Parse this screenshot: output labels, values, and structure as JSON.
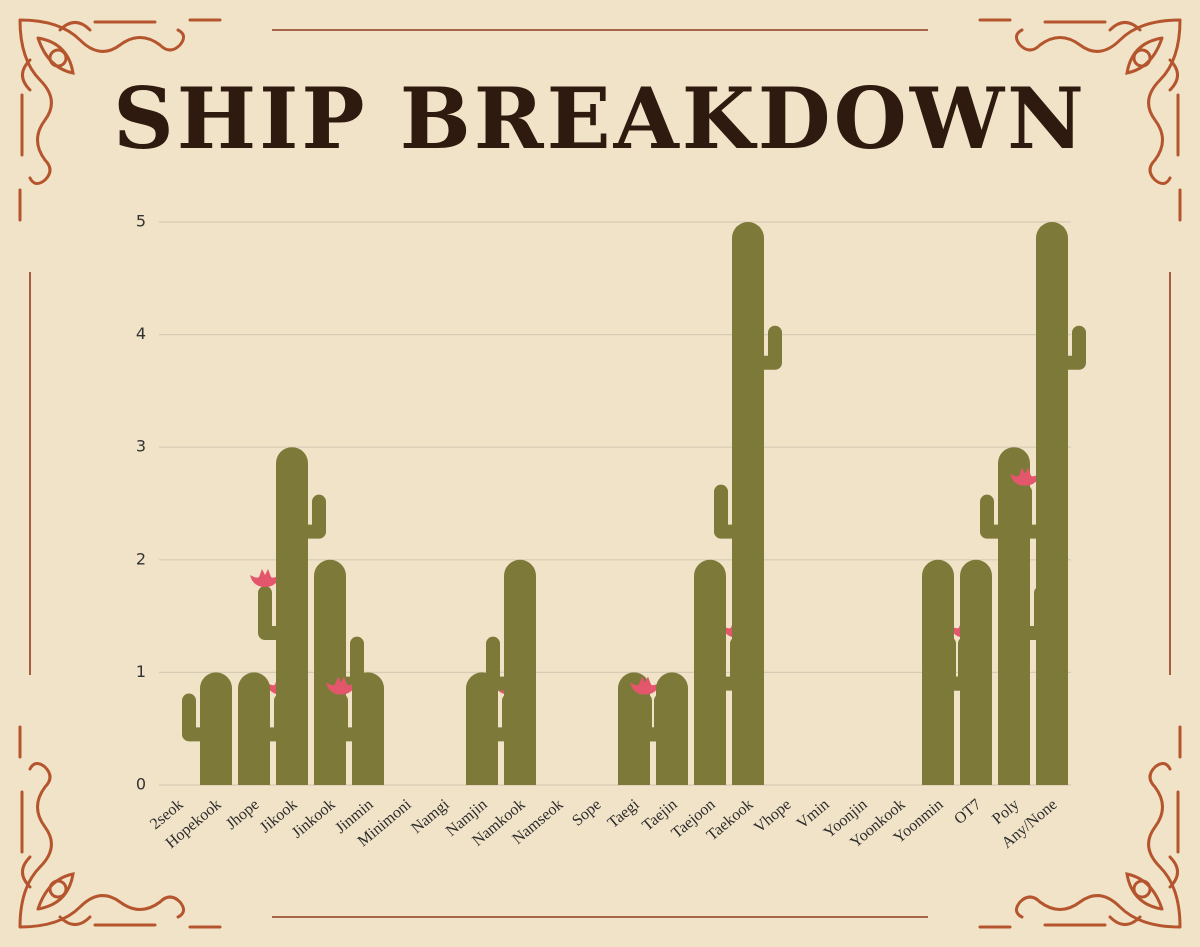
{
  "chart_data": {
    "type": "bar",
    "title": "SHIP BREAKDOWN",
    "categories": [
      "2seok",
      "Hopekook",
      "Jhope",
      "Jikook",
      "Jinkook",
      "Jinmin",
      "Minimoni",
      "Namgi",
      "Namjin",
      "Namkook",
      "Namseok",
      "Sope",
      "Taegi",
      "Taejin",
      "Taejoon",
      "Taekook",
      "Vhope",
      "Vmin",
      "Yoonjin",
      "Yoonkook",
      "Yoonmin",
      "OT7",
      "Poly",
      "Any/None"
    ],
    "values": [
      0,
      1,
      1,
      3,
      2,
      1,
      0,
      0,
      1,
      2,
      0,
      0,
      1,
      1,
      2,
      5,
      0,
      0,
      0,
      0,
      2,
      2,
      3,
      5
    ],
    "color": "#7d7a39",
    "ylim": [
      0,
      5
    ],
    "yticks": [
      0,
      1,
      2,
      3,
      4,
      5
    ],
    "grid": true
  }
}
